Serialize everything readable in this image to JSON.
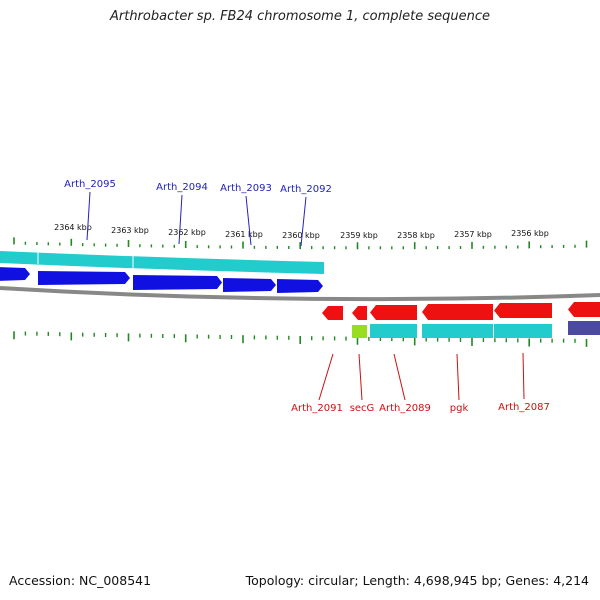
{
  "title": "Arthrobacter sp. FB24 chromosome 1, complete sequence",
  "footer": {
    "accession": "Accession: NC_008541",
    "topology": "Topology: circular; Length: 4,698,945 bp; Genes: 4,214"
  },
  "colors": {
    "forward_gene": "#1010e0",
    "reverse_gene": "#ee1111",
    "cds_band": "#22cccc",
    "secg_band": "#99dd22",
    "other_band": "#4a4aa0",
    "tick": "#228822",
    "backbone": "#888888",
    "forward_label": "#2222bb",
    "reverse_label": "#cc1111"
  },
  "kbp_labels": [
    "2364 kbp",
    "2363 kbp",
    "2362 kbp",
    "2361 kbp",
    "2360 kbp",
    "2359 kbp",
    "2358 kbp",
    "2357 kbp",
    "2356 kbp"
  ],
  "forward_genes": [
    "Arth_2095",
    "Arth_2094",
    "Arth_2093",
    "Arth_2092"
  ],
  "reverse_genes": [
    "Arth_2091",
    "secG",
    "Arth_2089",
    "pgk",
    "Arth_2087"
  ]
}
